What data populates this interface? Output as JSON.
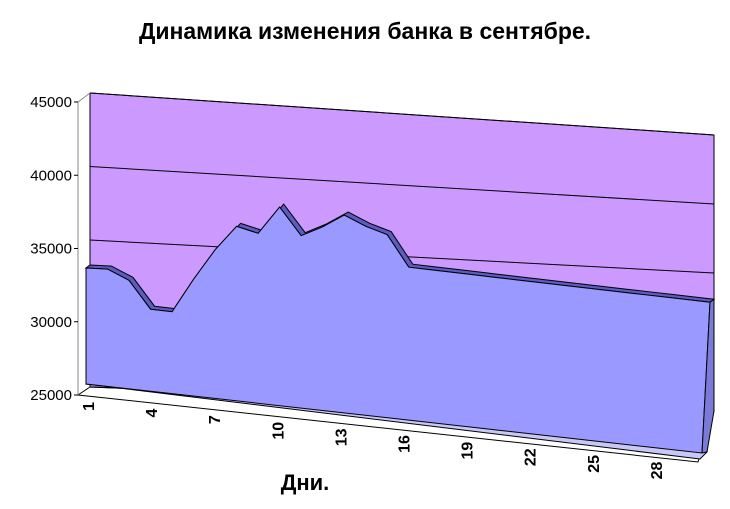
{
  "chart_data": {
    "type": "area",
    "title": "Динамика изменения банка в сентябре.",
    "xlabel": "Дни.",
    "ylabel": "",
    "ylim": [
      25000,
      45000
    ],
    "y_ticks": [
      25000,
      30000,
      35000,
      40000,
      45000
    ],
    "x_ticks": [
      1,
      4,
      7,
      10,
      13,
      16,
      19,
      22,
      25,
      28
    ],
    "grid": true,
    "legend": "none",
    "three_d": true,
    "colors": {
      "back_wall": "#cc99ff",
      "area": "#9999ff",
      "area_top": "#5c5cc0",
      "area_front": "#c8c8f6",
      "floor": "#ffffff"
    },
    "x": [
      1,
      2,
      3,
      4,
      5,
      6,
      7,
      8,
      9,
      10,
      11,
      12,
      13,
      14,
      15,
      16,
      17,
      18,
      19,
      20,
      21,
      22,
      23,
      24,
      25,
      26,
      27,
      28,
      29,
      30
    ],
    "values": [
      33300,
      33300,
      32600,
      30700,
      30600,
      32900,
      35000,
      36700,
      36300,
      38200,
      36300,
      37000,
      37900,
      37200,
      36700,
      34500,
      34400,
      34300,
      34200,
      34100,
      34000,
      33900,
      33800,
      33700,
      33600,
      33500,
      33400,
      33300,
      33200,
      33100
    ]
  }
}
